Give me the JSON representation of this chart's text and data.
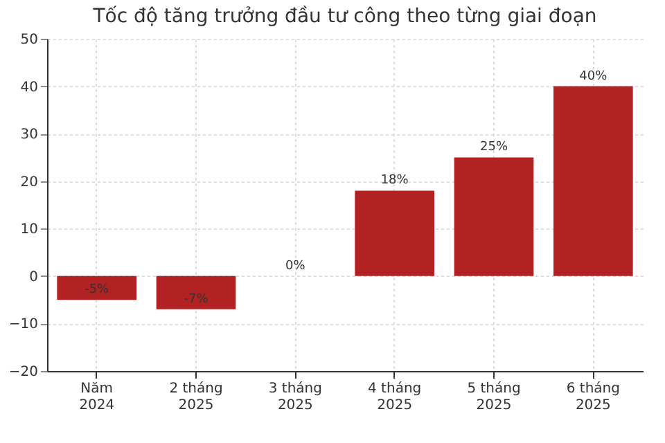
{
  "chart_data": {
    "type": "bar",
    "title": "Tốc độ tăng trưởng đầu tư công theo từng giai đoạn",
    "categories": [
      "Năm\n2024",
      "2 tháng\n2025",
      "3 tháng\n2025",
      "4 tháng\n2025",
      "5 tháng\n2025",
      "6 tháng\n2025"
    ],
    "values": [
      -5,
      -7,
      0,
      18,
      25,
      40
    ],
    "color": "#b22222",
    "value_labels": [
      "-5%",
      "-7%",
      "0%",
      "18%",
      "25%",
      "40%"
    ],
    "ylim": [
      -20,
      50
    ],
    "yticks": [
      -20,
      -10,
      0,
      10,
      20,
      30,
      40,
      50
    ],
    "grid": true
  }
}
